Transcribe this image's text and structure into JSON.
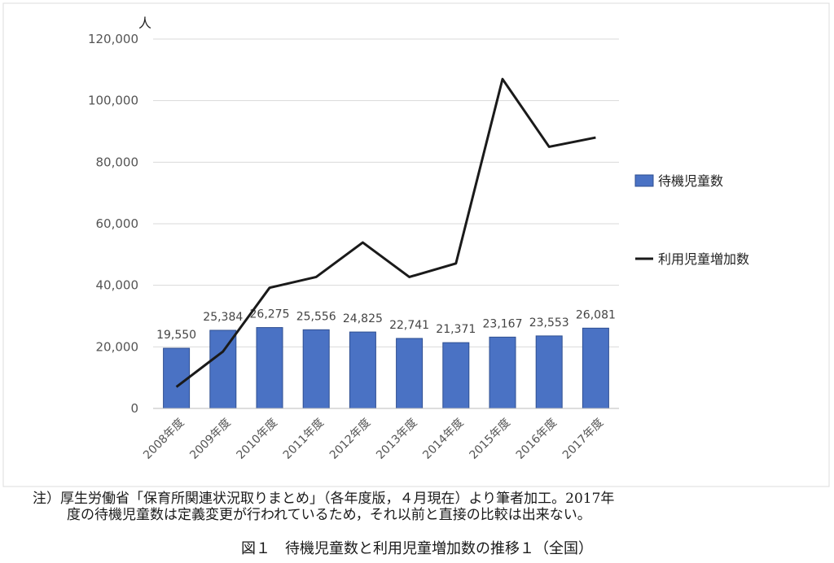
{
  "chart_data": {
    "type": "bar",
    "unit_label": "人",
    "categories": [
      "2008年度",
      "2009年度",
      "2010年度",
      "2011年度",
      "2012年度",
      "2013年度",
      "2014年度",
      "2015年度",
      "2016年度",
      "2017年度"
    ],
    "series": [
      {
        "name": "待機児童数",
        "type": "bar",
        "color": "#4a72c4",
        "values": [
          19550,
          25384,
          26275,
          25556,
          24825,
          22741,
          21371,
          23167,
          23553,
          26081
        ],
        "labels": [
          "19,550",
          "25,384",
          "26,275",
          "25,556",
          "24,825",
          "22,741",
          "21,371",
          "23,167",
          "23,553",
          "26,081"
        ]
      },
      {
        "name": "利用児童増加数",
        "type": "line",
        "color": "#1a1a1a",
        "values": [
          7000,
          18500,
          39200,
          42700,
          53900,
          42700,
          47100,
          107000,
          85000,
          88000
        ]
      }
    ],
    "ylim": [
      0,
      120000
    ],
    "yticks": [
      "0",
      "20,000",
      "40,000",
      "60,000",
      "80,000",
      "100,000",
      "120,000"
    ],
    "grid": true,
    "legend_position": "right"
  },
  "note": {
    "line1": "注）厚生労働省「保育所関連状況取りまとめ」（各年度版，４月現在）より筆者加工。2017年",
    "line2": "度の待機児童数は定義変更が行われているため，それ以前と直接の比較は出来ない。"
  },
  "caption": "図１　待機児童数と利用児童増加数の推移１（全国）"
}
